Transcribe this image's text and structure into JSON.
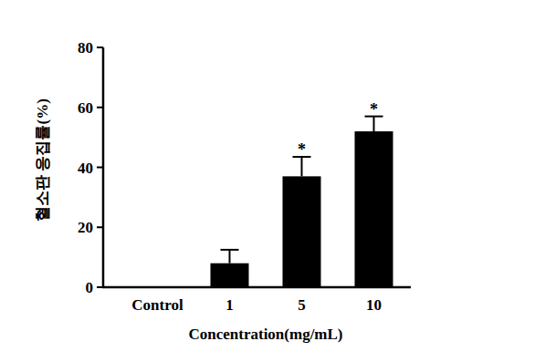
{
  "chart_data": {
    "type": "bar",
    "x_label": "Concentration(mg/mL)",
    "y_label": "혈소판 응집률(%)",
    "categories": [
      "Control",
      "1",
      "5",
      "10"
    ],
    "values": [
      0,
      8,
      37,
      52
    ],
    "errors": [
      0,
      4.5,
      6.5,
      5
    ],
    "significance": [
      null,
      null,
      "*",
      "*"
    ],
    "color": "#000000",
    "ylim": [
      0,
      80
    ],
    "yticks": [
      0,
      20,
      40,
      60,
      80
    ],
    "grid": false
  }
}
